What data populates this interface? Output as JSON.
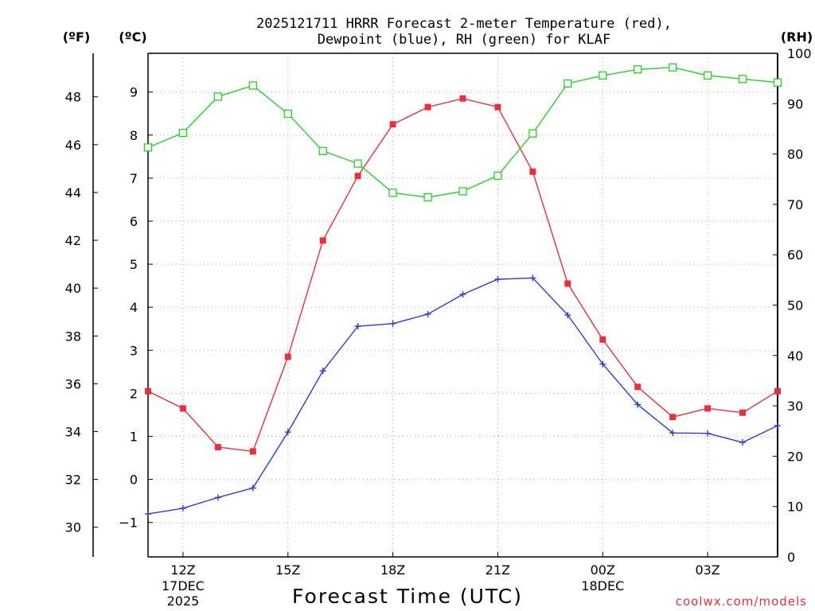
{
  "chart_data": {
    "type": "line",
    "title_line1": "2025121711 HRRR Forecast 2-meter Temperature (red),",
    "title_line2": "Dewpoint (blue), RH (green) for KLAF",
    "xlabel": "Forecast Time (UTC)",
    "unit_f": "(ºF)",
    "unit_c": "(ºC)",
    "unit_rh": "(RH)",
    "watermark": "coolwx.com/models",
    "x_hours": [
      11,
      12,
      13,
      14,
      15,
      16,
      17,
      18,
      19,
      20,
      21,
      22,
      23,
      24,
      25,
      26,
      27,
      28,
      29
    ],
    "x_ticks": [
      {
        "hour": 12,
        "label": "12Z",
        "sub1": "17DEC",
        "sub2": "2025"
      },
      {
        "hour": 15,
        "label": "15Z",
        "sub1": "",
        "sub2": ""
      },
      {
        "hour": 18,
        "label": "18Z",
        "sub1": "",
        "sub2": ""
      },
      {
        "hour": 21,
        "label": "21Z",
        "sub1": "",
        "sub2": ""
      },
      {
        "hour": 24,
        "label": "00Z",
        "sub1": "18DEC",
        "sub2": ""
      },
      {
        "hour": 27,
        "label": "03Z",
        "sub1": "",
        "sub2": ""
      }
    ],
    "xlim": [
      11,
      29
    ],
    "ylim_c": [
      -1.8,
      9.9
    ],
    "ylim_rh": [
      0,
      100
    ],
    "yticks_c": [
      -1,
      0,
      1,
      2,
      3,
      4,
      5,
      6,
      7,
      8,
      9
    ],
    "yticks_f": [
      30,
      32,
      34,
      36,
      38,
      40,
      42,
      44,
      46,
      48
    ],
    "yticks_rh": [
      0,
      10,
      20,
      30,
      40,
      50,
      60,
      70,
      80,
      90,
      100
    ],
    "series": [
      {
        "name": "Temperature",
        "axis": "c",
        "color": "#e8303a",
        "marker": "filled-square",
        "values": [
          2.05,
          1.65,
          0.75,
          0.65,
          2.85,
          5.55,
          7.05,
          8.25,
          8.65,
          8.85,
          8.65,
          7.15,
          4.55,
          3.25,
          2.15,
          1.45,
          1.65,
          1.55,
          2.05
        ]
      },
      {
        "name": "Dewpoint",
        "axis": "c",
        "color": "#2a3bd8",
        "marker": "plus",
        "values": [
          -0.8,
          -0.67,
          -0.42,
          -0.2,
          1.1,
          2.52,
          3.56,
          3.62,
          3.84,
          4.3,
          4.65,
          4.68,
          3.82,
          2.68,
          1.74,
          1.08,
          1.07,
          0.86,
          1.25
        ]
      },
      {
        "name": "RH",
        "axis": "rh",
        "color": "#22d422",
        "marker": "open-square",
        "values": [
          81.3,
          84.2,
          91.4,
          93.6,
          88.0,
          80.6,
          78.1,
          72.3,
          71.4,
          72.6,
          75.7,
          84.1,
          94.0,
          95.6,
          96.8,
          97.2,
          95.6,
          94.9,
          94.2
        ]
      }
    ]
  }
}
